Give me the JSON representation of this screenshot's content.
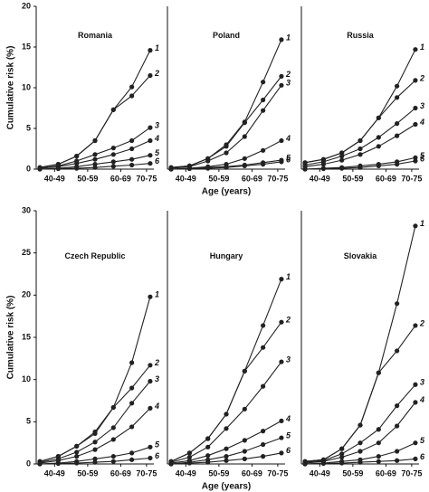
{
  "chart_data": [
    {
      "type": "line",
      "title": "Romania",
      "ylabel": "Cumulative risk (%)",
      "x": [
        40,
        45,
        50,
        55,
        60,
        65,
        70
      ],
      "xlim": [
        39,
        71
      ],
      "xticks": [
        {
          "value": 44,
          "label": "40-49"
        },
        {
          "value": 53,
          "label": "50-59"
        },
        {
          "value": 62,
          "label": "60-69"
        },
        {
          "value": 69,
          "label": "70-75"
        }
      ],
      "ylim": [
        0,
        20
      ],
      "yticks": [
        0,
        5,
        10,
        15,
        20
      ],
      "series": [
        {
          "name": "1",
          "color": "#222222",
          "values": [
            0.2,
            0.6,
            1.6,
            3.5,
            7.3,
            10.1,
            14.6
          ]
        },
        {
          "name": "2",
          "color": "#222222",
          "values": [
            0.2,
            0.6,
            1.6,
            3.5,
            7.3,
            9,
            11.5
          ]
        },
        {
          "name": "3",
          "color": "#222222",
          "values": [
            0.1,
            0.4,
            1,
            1.8,
            2.6,
            3.5,
            5.1
          ]
        },
        {
          "name": "4",
          "color": "#222222",
          "values": [
            0.1,
            0.3,
            0.7,
            1.2,
            1.8,
            2.5,
            3.5
          ]
        },
        {
          "name": "5",
          "color": "#222222",
          "values": [
            0,
            0.1,
            0.3,
            0.6,
            0.9,
            1.2,
            1.7
          ]
        },
        {
          "name": "6",
          "color": "#222222",
          "values": [
            0,
            0.05,
            0.1,
            0.2,
            0.35,
            0.5,
            0.7
          ]
        }
      ]
    },
    {
      "type": "line",
      "title": "Poland",
      "xlabel": "Age (years)",
      "x": [
        40,
        45,
        50,
        55,
        60,
        65,
        70
      ],
      "xlim": [
        39,
        71
      ],
      "xticks": [
        {
          "value": 44,
          "label": "40-49"
        },
        {
          "value": 53,
          "label": "50-59"
        },
        {
          "value": 62,
          "label": "60-69"
        },
        {
          "value": 69,
          "label": "70-75"
        }
      ],
      "ylim": [
        0,
        20
      ],
      "series": [
        {
          "name": "1",
          "color": "#222222",
          "values": [
            0.2,
            0.4,
            1.3,
            3,
            5.8,
            10.7,
            15.9
          ]
        },
        {
          "name": "2",
          "color": "#222222",
          "values": [
            0.2,
            0.4,
            1.3,
            2.8,
            5.7,
            8.5,
            11.4
          ]
        },
        {
          "name": "3",
          "color": "#222222",
          "values": [
            0.1,
            0.3,
            1,
            2,
            4,
            7.2,
            10.3
          ]
        },
        {
          "name": "4",
          "color": "#222222",
          "values": [
            0,
            0.1,
            0.3,
            0.6,
            1.3,
            2.3,
            3.5
          ]
        },
        {
          "name": "5",
          "color": "#222222",
          "values": [
            0,
            0.1,
            0.2,
            0.3,
            0.5,
            0.8,
            1.1
          ]
        },
        {
          "name": "6",
          "color": "#222222",
          "values": [
            0,
            0.05,
            0.1,
            0.2,
            0.4,
            0.6,
            0.9
          ]
        }
      ]
    },
    {
      "type": "line",
      "title": "Russia",
      "x": [
        40,
        45,
        50,
        55,
        60,
        65,
        70
      ],
      "xlim": [
        39,
        71
      ],
      "xticks": [
        {
          "value": 44,
          "label": "40-49"
        },
        {
          "value": 53,
          "label": "50-59"
        },
        {
          "value": 62,
          "label": "60-69"
        },
        {
          "value": 69,
          "label": "70-75"
        }
      ],
      "ylim": [
        0,
        20
      ],
      "series": [
        {
          "name": "1",
          "color": "#222222",
          "values": [
            0.8,
            1.2,
            2,
            3.5,
            6.3,
            10.2,
            14.7
          ]
        },
        {
          "name": "2",
          "color": "#222222",
          "values": [
            0.8,
            1.2,
            2,
            3.5,
            6.3,
            8.8,
            10.9
          ]
        },
        {
          "name": "3",
          "color": "#222222",
          "values": [
            0.5,
            0.9,
            1.6,
            2.5,
            3.9,
            5.6,
            7.5
          ]
        },
        {
          "name": "4",
          "color": "#222222",
          "values": [
            0.3,
            0.6,
            1.1,
            1.8,
            2.8,
            4.1,
            5.5
          ]
        },
        {
          "name": "5",
          "color": "#222222",
          "values": [
            0,
            0.1,
            0.2,
            0.4,
            0.6,
            0.9,
            1.4
          ]
        },
        {
          "name": "6",
          "color": "#222222",
          "values": [
            0,
            0.05,
            0.1,
            0.2,
            0.4,
            0.6,
            1
          ]
        }
      ]
    },
    {
      "type": "line",
      "title": "Czech Republic",
      "ylabel": "Cumulative risk (%)",
      "x": [
        40,
        45,
        50,
        55,
        60,
        65,
        70
      ],
      "xlim": [
        39,
        71
      ],
      "xticks": [
        {
          "value": 44,
          "label": "40-49"
        },
        {
          "value": 53,
          "label": "50-59"
        },
        {
          "value": 62,
          "label": "60-69"
        },
        {
          "value": 69,
          "label": "70-75"
        }
      ],
      "ylim": [
        0,
        30
      ],
      "yticks": [
        0,
        5,
        10,
        15,
        20,
        25,
        30
      ],
      "series": [
        {
          "name": "1",
          "color": "#222222",
          "values": [
            0.3,
            0.9,
            2.1,
            3.8,
            6.7,
            12,
            19.8
          ]
        },
        {
          "name": "2",
          "color": "#222222",
          "values": [
            0.3,
            0.9,
            2.1,
            3.6,
            6.7,
            9,
            11.7
          ]
        },
        {
          "name": "3",
          "color": "#222222",
          "values": [
            0.2,
            0.6,
            1.4,
            2.6,
            4.3,
            7.2,
            9.8
          ]
        },
        {
          "name": "4",
          "color": "#222222",
          "values": [
            0.1,
            0.4,
            0.9,
            1.7,
            2.9,
            4.4,
            6.6
          ]
        },
        {
          "name": "5",
          "color": "#222222",
          "values": [
            0,
            0.1,
            0.3,
            0.6,
            0.9,
            1.3,
            2
          ]
        },
        {
          "name": "6",
          "color": "#222222",
          "values": [
            0,
            0.05,
            0.1,
            0.2,
            0.3,
            0.5,
            0.7
          ]
        }
      ]
    },
    {
      "type": "line",
      "title": "Hungary",
      "xlabel": "Age (years)",
      "x": [
        40,
        45,
        50,
        55,
        60,
        65,
        70
      ],
      "xlim": [
        39,
        71
      ],
      "xticks": [
        {
          "value": 44,
          "label": "40-49"
        },
        {
          "value": 53,
          "label": "50-59"
        },
        {
          "value": 62,
          "label": "60-69"
        },
        {
          "value": 69,
          "label": "70-75"
        }
      ],
      "ylim": [
        0,
        30
      ],
      "series": [
        {
          "name": "1",
          "color": "#222222",
          "values": [
            0.3,
            1.3,
            3,
            5.9,
            11,
            16.4,
            21.9
          ]
        },
        {
          "name": "2",
          "color": "#222222",
          "values": [
            0.3,
            1.3,
            3,
            5.9,
            11,
            13.8,
            16.8
          ]
        },
        {
          "name": "3",
          "color": "#222222",
          "values": [
            0.2,
            0.8,
            2,
            4.2,
            6.5,
            9.2,
            12.1
          ]
        },
        {
          "name": "4",
          "color": "#222222",
          "values": [
            0.1,
            0.4,
            1,
            1.8,
            2.8,
            3.9,
            5.1
          ]
        },
        {
          "name": "5",
          "color": "#222222",
          "values": [
            0,
            0.2,
            0.5,
            0.9,
            1.5,
            2.3,
            3.1
          ]
        },
        {
          "name": "6",
          "color": "#222222",
          "values": [
            0,
            0.1,
            0.2,
            0.4,
            0.6,
            0.9,
            1.3
          ]
        }
      ]
    },
    {
      "type": "line",
      "title": "Slovakia",
      "x": [
        40,
        45,
        50,
        55,
        60,
        65,
        70
      ],
      "xlim": [
        39,
        71
      ],
      "xticks": [
        {
          "value": 44,
          "label": "40-49"
        },
        {
          "value": 53,
          "label": "50-59"
        },
        {
          "value": 62,
          "label": "60-69"
        },
        {
          "value": 69,
          "label": "70-75"
        }
      ],
      "ylim": [
        0,
        30
      ],
      "series": [
        {
          "name": "1",
          "color": "#222222",
          "values": [
            0.3,
            0.5,
            1.8,
            4.6,
            10.8,
            19,
            28.2
          ]
        },
        {
          "name": "2",
          "color": "#222222",
          "values": [
            0.3,
            0.5,
            1.8,
            4.6,
            10.8,
            13.4,
            16.4
          ]
        },
        {
          "name": "3",
          "color": "#222222",
          "values": [
            0.2,
            0.4,
            1.2,
            2.5,
            4.1,
            6.9,
            9.4
          ]
        },
        {
          "name": "4",
          "color": "#222222",
          "values": [
            0.1,
            0.3,
            0.8,
            1.5,
            2.5,
            4.5,
            7.3
          ]
        },
        {
          "name": "5",
          "color": "#222222",
          "values": [
            0,
            0.1,
            0.3,
            0.5,
            0.9,
            1.5,
            2.5
          ]
        },
        {
          "name": "6",
          "color": "#222222",
          "values": [
            0,
            0.05,
            0.1,
            0.2,
            0.3,
            0.4,
            0.6
          ]
        }
      ]
    }
  ]
}
